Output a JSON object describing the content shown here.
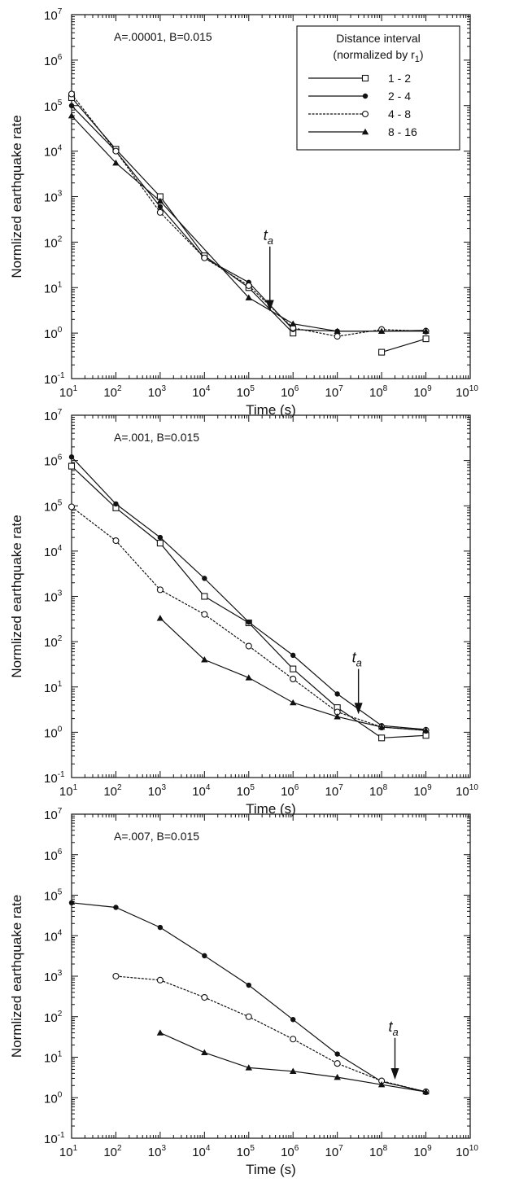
{
  "colors": {
    "ink": "#111111",
    "background": "#ffffff"
  },
  "legend": {
    "title_line1": "Distance interval",
    "title_line2": "(normalized by r",
    "title_sub": "1",
    "title_close": ")",
    "entries": [
      {
        "label": "1 - 2",
        "marker": "open-square"
      },
      {
        "label": "2 - 4",
        "marker": "filled-circle"
      },
      {
        "label": "4 - 8",
        "marker": "open-circle"
      },
      {
        "label": "8 - 16",
        "marker": "filled-triangle"
      }
    ]
  },
  "chart_data": [
    {
      "type": "line",
      "annotation": "A=.00001, B=0.015",
      "xlabel": "Time (s)",
      "ylabel": "Normlized earthquake rate",
      "xscale": "log",
      "yscale": "log",
      "xlim": [
        10,
        10000000000
      ],
      "ylim": [
        0.1,
        10000000
      ],
      "x_tick_exponents": [
        "1",
        "2",
        "3",
        "4",
        "5",
        "6",
        "7",
        "8",
        "9",
        "10"
      ],
      "y_tick_exponents": [
        "-1",
        "0",
        "1",
        "2",
        "3",
        "4",
        "5",
        "6",
        "7"
      ],
      "tick_base": "10",
      "ta": {
        "label": "t",
        "sub": "a",
        "x": 300000,
        "y_top": 80,
        "y_bottom": 3
      },
      "legend_shown": true,
      "series": [
        {
          "name": "1 - 2",
          "marker": "open-square",
          "points": [
            [
              10,
              150000
            ],
            [
              100,
              11000
            ],
            [
              1000,
              1000
            ],
            [
              10000,
              50
            ],
            [
              100000,
              10
            ],
            [
              1000000,
              1.0
            ],
            [
              100000000,
              0.38
            ],
            [
              1000000000,
              0.75
            ]
          ],
          "breaks": [
            6
          ]
        },
        {
          "name": "2 - 4",
          "marker": "filled-circle",
          "points": [
            [
              10,
              100000
            ],
            [
              100,
              10000
            ],
            [
              1000,
              600
            ],
            [
              10000,
              45
            ],
            [
              100000,
              13
            ],
            [
              1000000,
              1.2
            ],
            [
              10000000,
              1.1
            ],
            [
              100000000,
              1.1
            ],
            [
              1000000000,
              1.15
            ]
          ]
        },
        {
          "name": "4 - 8",
          "marker": "open-circle",
          "points": [
            [
              10,
              180000
            ],
            [
              100,
              10000
            ],
            [
              1000,
              450
            ],
            [
              10000,
              45
            ],
            [
              100000,
              11
            ],
            [
              1000000,
              1.3
            ],
            [
              10000000,
              0.85
            ],
            [
              100000000,
              1.2
            ],
            [
              1000000000,
              1.1
            ]
          ]
        },
        {
          "name": "8 - 16",
          "marker": "filled-triangle",
          "points": [
            [
              10,
              60000
            ],
            [
              100,
              5500
            ],
            [
              1000,
              800
            ],
            [
              100000,
              6
            ],
            [
              1000000,
              1.6
            ],
            [
              10000000,
              1.1
            ],
            [
              100000000,
              1.1
            ],
            [
              1000000000,
              1.1
            ]
          ]
        }
      ]
    },
    {
      "type": "line",
      "annotation": "A=.001, B=0.015",
      "xlabel": "Time (s)",
      "ylabel": "Normlized earthquake rate",
      "xscale": "log",
      "yscale": "log",
      "xlim": [
        10,
        10000000000
      ],
      "ylim": [
        0.1,
        10000000
      ],
      "x_tick_exponents": [
        "1",
        "2",
        "3",
        "4",
        "5",
        "6",
        "7",
        "8",
        "9",
        "10"
      ],
      "y_tick_exponents": [
        "-1",
        "0",
        "1",
        "2",
        "3",
        "4",
        "5",
        "6",
        "7"
      ],
      "tick_base": "10",
      "ta": {
        "label": "t",
        "sub": "a",
        "x": 30000000,
        "y_top": 25,
        "y_bottom": 2.5
      },
      "legend_shown": false,
      "series": [
        {
          "name": "1 - 2",
          "marker": "open-square",
          "points": [
            [
              10,
              750000
            ],
            [
              100,
              90000
            ],
            [
              1000,
              15000
            ],
            [
              10000,
              1000
            ],
            [
              100000,
              260
            ],
            [
              1000000,
              25
            ],
            [
              10000000,
              3.5
            ],
            [
              100000000,
              0.75
            ],
            [
              1000000000,
              0.85
            ]
          ]
        },
        {
          "name": "2 - 4",
          "marker": "filled-circle",
          "points": [
            [
              10,
              1200000
            ],
            [
              100,
              110000
            ],
            [
              1000,
              20000
            ],
            [
              10000,
              2500
            ],
            [
              100000,
              270
            ],
            [
              1000000,
              50
            ],
            [
              10000000,
              7
            ],
            [
              100000000,
              1.4
            ],
            [
              1000000000,
              1.15
            ]
          ]
        },
        {
          "name": "4 - 8",
          "marker": "open-circle",
          "points": [
            [
              10,
              95000
            ],
            [
              100,
              17000
            ],
            [
              1000,
              1400
            ],
            [
              10000,
              400
            ],
            [
              100000,
              80
            ],
            [
              1000000,
              15
            ],
            [
              10000000,
              2.8
            ],
            [
              100000000,
              1.3
            ],
            [
              1000000000,
              1.1
            ]
          ]
        },
        {
          "name": "8 - 16",
          "marker": "filled-triangle",
          "points": [
            [
              1000,
              330
            ],
            [
              10000,
              40
            ],
            [
              100000,
              16
            ],
            [
              1000000,
              4.5
            ],
            [
              10000000,
              2.2
            ],
            [
              100000000,
              1.3
            ],
            [
              1000000000,
              1.1
            ]
          ]
        }
      ]
    },
    {
      "type": "line",
      "annotation": "A=.007, B=0.015",
      "xlabel": "Time (s)",
      "ylabel": "Normlized earthquake rate",
      "xscale": "log",
      "yscale": "log",
      "xlim": [
        10,
        10000000000
      ],
      "ylim": [
        0.1,
        10000000
      ],
      "x_tick_exponents": [
        "1",
        "2",
        "3",
        "4",
        "5",
        "6",
        "7",
        "8",
        "9",
        "10"
      ],
      "y_tick_exponents": [
        "-1",
        "0",
        "1",
        "2",
        "3",
        "4",
        "5",
        "6",
        "7"
      ],
      "tick_base": "10",
      "ta": {
        "label": "t",
        "sub": "a",
        "x": 200000000,
        "y_top": 30,
        "y_bottom": 2.8
      },
      "legend_shown": false,
      "series": [
        {
          "name": "2 - 4",
          "marker": "filled-circle",
          "points": [
            [
              10,
              65000
            ],
            [
              100,
              50000
            ],
            [
              1000,
              16000
            ],
            [
              10000,
              3200
            ],
            [
              100000,
              600
            ],
            [
              1000000,
              85
            ],
            [
              10000000,
              12
            ],
            [
              100000000,
              2.5
            ],
            [
              1000000000,
              1.4
            ]
          ]
        },
        {
          "name": "4 - 8",
          "marker": "open-circle",
          "points": [
            [
              100,
              1000
            ],
            [
              1000,
              800
            ],
            [
              10000,
              300
            ],
            [
              100000,
              100
            ],
            [
              1000000,
              28
            ],
            [
              10000000,
              7
            ],
            [
              100000000,
              2.6
            ],
            [
              1000000000,
              1.4
            ]
          ]
        },
        {
          "name": "8 - 16",
          "marker": "filled-triangle",
          "points": [
            [
              1000,
              40
            ],
            [
              10000,
              13
            ],
            [
              100000,
              5.5
            ],
            [
              1000000,
              4.5
            ],
            [
              10000000,
              3.2
            ],
            [
              100000000,
              2.1
            ],
            [
              1000000000,
              1.4
            ]
          ]
        }
      ]
    }
  ]
}
